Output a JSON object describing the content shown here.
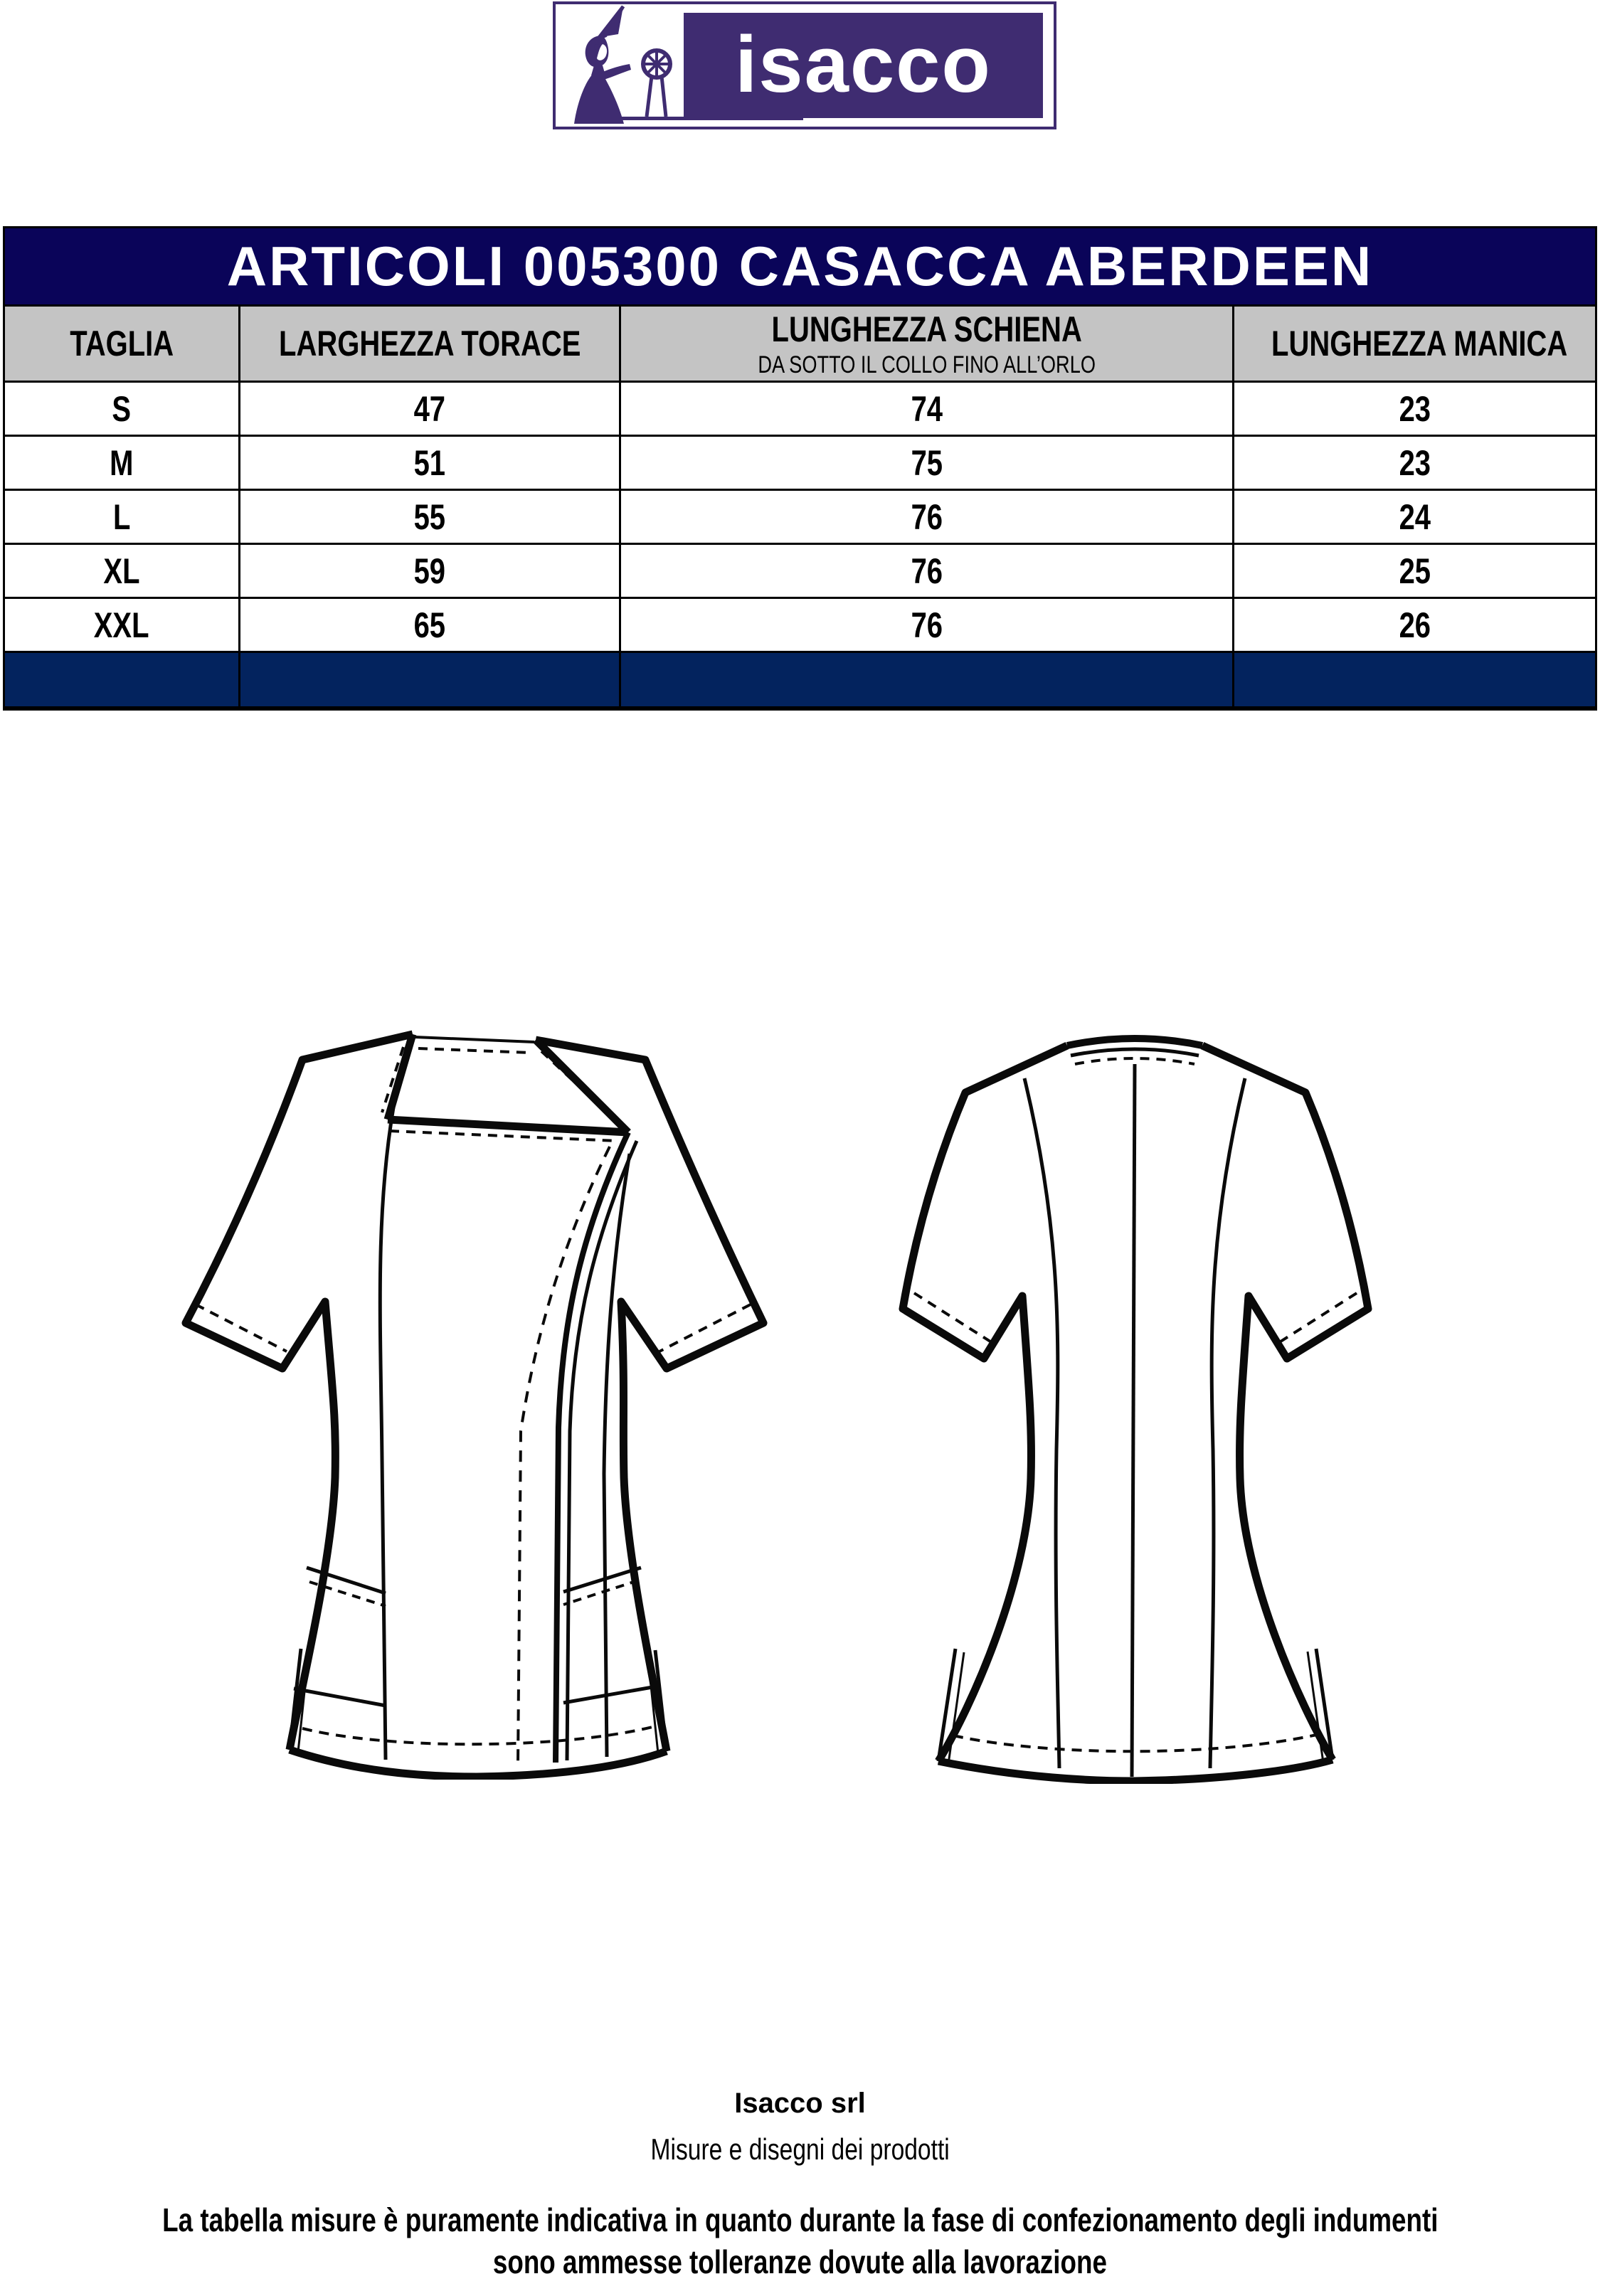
{
  "logo": {
    "wordmark": "isacco",
    "brand_color": "#3f2c71"
  },
  "table": {
    "title": "ARTICOLI 005300 CASACCA ABERDEEN",
    "columns": [
      {
        "label": "TAGLIA"
      },
      {
        "label": "LARGHEZZA TORACE"
      },
      {
        "label": "LUNGHEZZA SCHIENA",
        "sublabel": "DA SOTTO IL COLLO FINO ALL’ORLO"
      },
      {
        "label": "LUNGHEZZA MANICA"
      }
    ],
    "rows": [
      [
        "S",
        "47",
        "74",
        "23"
      ],
      [
        "M",
        "51",
        "75",
        "23"
      ],
      [
        "L",
        "55",
        "76",
        "24"
      ],
      [
        "XL",
        "59",
        "76",
        "25"
      ],
      [
        "XXL",
        "65",
        "76",
        "26"
      ]
    ],
    "colors": {
      "title_bg": "#0a0459",
      "header_bg": "#c4c4c4",
      "footer_bg": "#03235e",
      "border": "#000000"
    }
  },
  "figures": {
    "front": "garment-front-technical-drawing",
    "back": "garment-back-technical-drawing"
  },
  "footer": {
    "company": "Isacco srl",
    "subtitle": "Misure e disegni dei prodotti",
    "disclaimer_line1": "La tabella misure è puramente indicativa in quanto durante la fase di confezionamento degli indumenti",
    "disclaimer_line2": "sono ammesse tolleranze dovute alla lavorazione"
  }
}
